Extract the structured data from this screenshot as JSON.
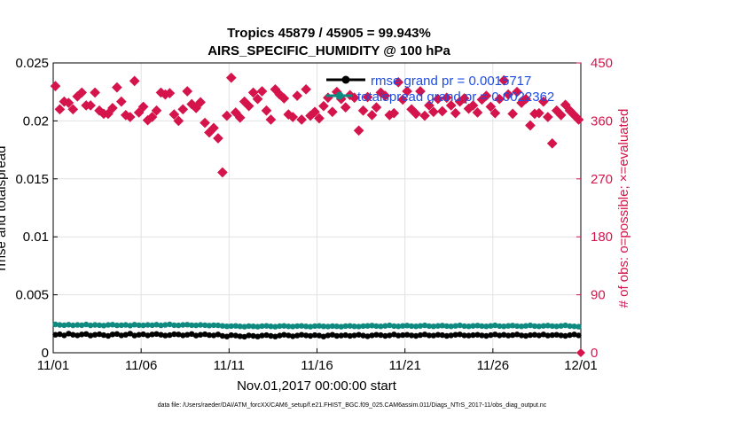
{
  "chart_data": {
    "type": "scatter",
    "title": "Tropics 45879 / 45905 = 99.943%",
    "subtitle": "AIRS_SPECIFIC_HUMIDITY @ 100 hPa",
    "xlabel": "Nov.01,2017 00:00:00 start",
    "ylabel_left": "rmse and totalspread",
    "ylabel_right": "# of obs: o=possible; ×=evaluated",
    "footnote": "data file: /Users/raeder/DAI/ATM_forcXX/CAM6_setup/f.e21.FHIST_BGC.f09_025.CAM6assim.011/Diags_NTrS_2017-11/obs_diag_output.nc",
    "x_ticks": [
      "11/01",
      "11/06",
      "11/11",
      "11/16",
      "11/21",
      "11/26",
      "12/01"
    ],
    "x_range_days": [
      0,
      30
    ],
    "y_left_ticks": [
      "0",
      "0.005",
      "0.01",
      "0.015",
      "0.02",
      "0.025"
    ],
    "y_left_range": [
      0,
      0.025
    ],
    "y_right_ticks": [
      "0",
      "90",
      "180",
      "270",
      "360",
      "450"
    ],
    "y_right_range": [
      0,
      450
    ],
    "legend": [
      {
        "label": "rmse grand pr = 0.0015717",
        "color": "#000000"
      },
      {
        "label": "totalspread grand pr = 0.0022362",
        "color": "#0f8a80"
      }
    ],
    "colors": {
      "rmse": "#000000",
      "spread": "#0f8a80",
      "obs": "#d4144b",
      "legend_text": "#1f4de0"
    },
    "series": [
      {
        "name": "rmse",
        "x_start_day": 0.125,
        "x_step_days": 0.25,
        "values": [
          0.00155,
          0.0016,
          0.0015,
          0.00165,
          0.00155,
          0.0015,
          0.00158,
          0.00162,
          0.00148,
          0.00155,
          0.0016,
          0.00152,
          0.00145,
          0.00158,
          0.00162,
          0.0015,
          0.00155,
          0.00165,
          0.00148,
          0.00155,
          0.0016,
          0.0015,
          0.00158,
          0.00162,
          0.00155,
          0.00148,
          0.00152,
          0.0016,
          0.00158,
          0.0015,
          0.00155,
          0.00162,
          0.00148,
          0.00155,
          0.0016,
          0.00152,
          0.0015,
          0.00158,
          0.00145,
          0.0014,
          0.00152,
          0.00148,
          0.00142,
          0.00138,
          0.0015,
          0.00145,
          0.0014,
          0.00148,
          0.00152,
          0.00145,
          0.0014,
          0.00148,
          0.00155,
          0.0015,
          0.00142,
          0.00148,
          0.00155,
          0.0015,
          0.00145,
          0.00152,
          0.00148,
          0.0014,
          0.0015,
          0.00155,
          0.00145,
          0.00148,
          0.00152,
          0.00145,
          0.0015,
          0.00155,
          0.00148,
          0.00142,
          0.0015,
          0.00155,
          0.00152,
          0.00145,
          0.0015,
          0.00158,
          0.00148,
          0.00152,
          0.00155,
          0.0015,
          0.00145,
          0.00152,
          0.00158,
          0.0015,
          0.00148,
          0.00155,
          0.00152,
          0.00145,
          0.0015,
          0.00155,
          0.00158,
          0.0015,
          0.00148,
          0.00152,
          0.00155,
          0.0015,
          0.00145,
          0.00152,
          0.00158,
          0.0015,
          0.00155,
          0.00148,
          0.00152,
          0.00158,
          0.0015,
          0.00145,
          0.00152,
          0.00155,
          0.0015,
          0.00158,
          0.00148,
          0.00152,
          0.00155,
          0.0015,
          0.00145,
          0.00152,
          0.00158,
          0.0015
        ]
      },
      {
        "name": "totalspread",
        "x_start_day": 0.125,
        "x_step_days": 0.25,
        "values": [
          0.00245,
          0.0024,
          0.00238,
          0.00242,
          0.00236,
          0.0024,
          0.00238,
          0.00244,
          0.00236,
          0.0024,
          0.00238,
          0.00235,
          0.0024,
          0.00242,
          0.00236,
          0.00238,
          0.0024,
          0.00235,
          0.00242,
          0.00238,
          0.00236,
          0.0024,
          0.00238,
          0.00242,
          0.00236,
          0.0024,
          0.00245,
          0.00238,
          0.00236,
          0.0024,
          0.00242,
          0.00238,
          0.00236,
          0.0024,
          0.00238,
          0.00235,
          0.00238,
          0.00236,
          0.00232,
          0.00228,
          0.0023,
          0.00232,
          0.00228,
          0.00225,
          0.0023,
          0.00228,
          0.00225,
          0.0023,
          0.00232,
          0.00228,
          0.00225,
          0.0023,
          0.00232,
          0.00228,
          0.00226,
          0.0023,
          0.00232,
          0.00228,
          0.00225,
          0.0023,
          0.00232,
          0.00228,
          0.00226,
          0.0023,
          0.00228,
          0.00225,
          0.0023,
          0.00232,
          0.00228,
          0.00226,
          0.0023,
          0.00232,
          0.00235,
          0.0023,
          0.00228,
          0.00232,
          0.00236,
          0.0023,
          0.00228,
          0.00232,
          0.00235,
          0.0023,
          0.00228,
          0.00232,
          0.00236,
          0.0023,
          0.00228,
          0.00232,
          0.00235,
          0.0023,
          0.00228,
          0.00232,
          0.00236,
          0.0023,
          0.00228,
          0.00232,
          0.00235,
          0.0023,
          0.00228,
          0.00232,
          0.00236,
          0.0023,
          0.00228,
          0.00232,
          0.00235,
          0.0023,
          0.00228,
          0.00232,
          0.00236,
          0.0023,
          0.00228,
          0.00232,
          0.00235,
          0.0023,
          0.00228,
          0.00232,
          0.00236,
          0.0023,
          0.00228,
          0.00225
        ]
      },
      {
        "name": "obs_count",
        "axis": "right",
        "x_start_day": 0.125,
        "x_step_days": 0.25,
        "values": [
          414,
          378,
          390,
          388,
          378,
          398,
          404,
          384,
          384,
          404,
          376,
          371,
          371,
          380,
          412,
          390,
          369,
          366,
          422,
          373,
          382,
          361,
          366,
          376,
          404,
          401,
          403,
          370,
          360,
          378,
          406,
          386,
          380,
          389,
          357,
          342,
          349,
          333,
          280,
          368,
          427,
          373,
          365,
          390,
          383,
          404,
          394,
          406,
          376,
          362,
          409,
          401,
          395,
          370,
          366,
          399,
          362,
          409,
          368,
          374,
          364,
          383,
          396,
          374,
          405,
          394,
          381,
          400,
          396,
          345,
          376,
          397,
          369,
          381,
          404,
          399,
          369,
          372,
          420,
          393,
          406,
          378,
          371,
          406,
          368,
          384,
          374,
          394,
          375,
          396,
          384,
          372,
          390,
          395,
          379,
          384,
          373,
          393,
          399,
          382,
          372,
          394,
          423,
          401,
          371,
          405,
          388,
          394,
          353,
          371,
          372,
          390,
          366,
          325,
          376,
          369,
          385,
          376,
          369,
          362
        ]
      },
      {
        "name": "obs_possible",
        "axis": "right",
        "x_day": 30,
        "values": [
          0
        ]
      }
    ]
  }
}
